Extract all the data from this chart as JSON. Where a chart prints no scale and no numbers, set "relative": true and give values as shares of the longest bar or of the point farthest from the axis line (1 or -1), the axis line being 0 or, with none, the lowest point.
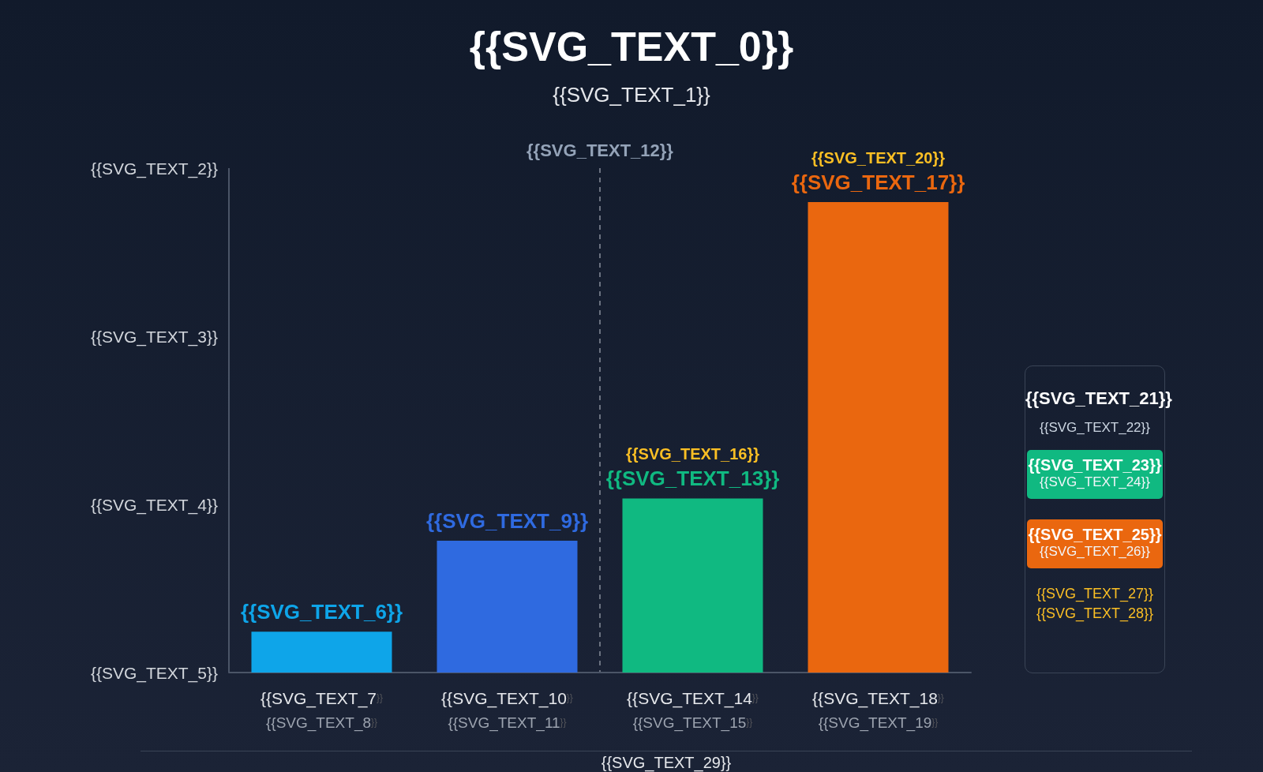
{
  "chart_data": {
    "type": "bar",
    "title": "{{SVG_TEXT_0}}",
    "subtitle": "{{SVG_TEXT_1}}",
    "categories": [
      "{{SVG_TEXT_7}}\n{{SVG_TEXT_8}}",
      "{{SVG_TEXT_10}}\n{{SVG_TEXT_11}}",
      "{{SVG_TEXT_14}}\n{{SVG_TEXT_15}}",
      "{{SVG_TEXT_18}}\n{{SVG_TEXT_19}}"
    ],
    "values": [
      0.087,
      0.28,
      0.37,
      1
    ],
    "relative": true,
    "colors": [
      "#0ea5e9",
      "#2f6ae0",
      "#10b981",
      "#ea670f"
    ],
    "annotations": [
      {
        "text": "{{SVG_TEXT_6}}",
        "x": "{{SVG_TEXT_7}}\n{{SVG_TEXT_8}}",
        "y": 0.087
      },
      {
        "text": "{{SVG_TEXT_9}}",
        "x": "{{SVG_TEXT_10}}\n{{SVG_TEXT_11}}",
        "y": 0.28
      },
      {
        "text": "{{SVG_TEXT_13}}",
        "x": "{{SVG_TEXT_14}}\n{{SVG_TEXT_15}}",
        "y": 0.37
      },
      {
        "text": "{{SVG_TEXT_17}}",
        "x": "{{SVG_TEXT_18}}\n{{SVG_TEXT_19}}",
        "y": 1
      },
      {
        "text": "{{SVG_TEXT_16}}",
        "x": "{{SVG_TEXT_14}}\n{{SVG_TEXT_15}}",
        "y": 0.37
      },
      {
        "text": "{{SVG_TEXT_20}}",
        "x": "{{SVG_TEXT_18}}\n{{SVG_TEXT_19}}",
        "y": 1
      },
      "{{SVG_TEXT_2}}",
      "{{SVG_TEXT_3}}",
      "{{SVG_TEXT_4}}",
      "{{SVG_TEXT_5}}",
      "{{SVG_TEXT_12}}",
      "{{SVG_TEXT_21}}",
      "{{SVG_TEXT_22}}",
      "{{SVG_TEXT_23}}",
      "{{SVG_TEXT_24}}",
      "{{SVG_TEXT_25}}",
      "{{SVG_TEXT_26}}",
      "{{SVG_TEXT_27}}",
      "{{SVG_TEXT_28}}",
      "{{SVG_TEXT_29}}"
    ],
    "grid": false
  }
}
